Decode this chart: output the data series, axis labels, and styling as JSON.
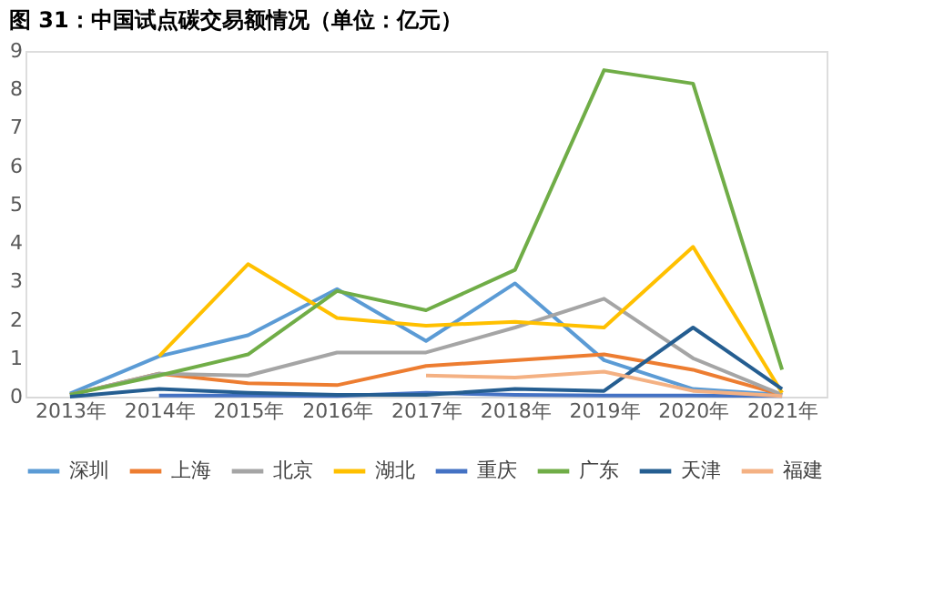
{
  "chart_data": {
    "type": "line",
    "title": "图 31：中国试点碳交易额情况（单位：亿元）",
    "categories": [
      "2013年",
      "2014年",
      "2015年",
      "2016年",
      "2017年",
      "2018年",
      "2019年",
      "2020年",
      "2021年"
    ],
    "series": [
      {
        "name": "深圳",
        "color": "#5b9bd5",
        "values": [
          0.08,
          1.05,
          1.6,
          2.8,
          1.45,
          2.95,
          0.95,
          0.2,
          0.05
        ]
      },
      {
        "name": "上海",
        "color": "#ed7d31",
        "values": [
          0.05,
          0.6,
          0.35,
          0.3,
          0.8,
          0.95,
          1.1,
          0.7,
          0.05
        ]
      },
      {
        "name": "北京",
        "color": "#a5a5a5",
        "values": [
          0.05,
          0.6,
          0.55,
          1.15,
          1.15,
          1.8,
          2.55,
          1.0,
          0.05
        ]
      },
      {
        "name": "湖北",
        "color": "#ffc000",
        "values": [
          null,
          1.05,
          3.45,
          2.05,
          1.85,
          1.95,
          1.8,
          3.9,
          0.1
        ]
      },
      {
        "name": "重庆",
        "color": "#4472c4",
        "values": [
          null,
          0.03,
          0.03,
          0.02,
          0.1,
          0.05,
          0.03,
          0.03,
          0.02
        ]
      },
      {
        "name": "广东",
        "color": "#70ad47",
        "values": [
          0.05,
          0.55,
          1.1,
          2.75,
          2.25,
          3.3,
          8.5,
          8.15,
          0.7
        ]
      },
      {
        "name": "天津",
        "color": "#255e91",
        "values": [
          0.0,
          0.2,
          0.1,
          0.05,
          0.05,
          0.2,
          0.15,
          1.8,
          0.2
        ]
      },
      {
        "name": "福建",
        "color": "#f4b183",
        "values": [
          null,
          null,
          null,
          null,
          0.55,
          0.5,
          0.65,
          0.15,
          0.02
        ]
      }
    ],
    "ylim": [
      0,
      9
    ],
    "yticks": [
      0,
      1,
      2,
      3,
      4,
      5,
      6,
      7,
      8,
      9
    ],
    "grid": false,
    "legend": "bottom",
    "marker": "none",
    "line_style": "solid"
  }
}
